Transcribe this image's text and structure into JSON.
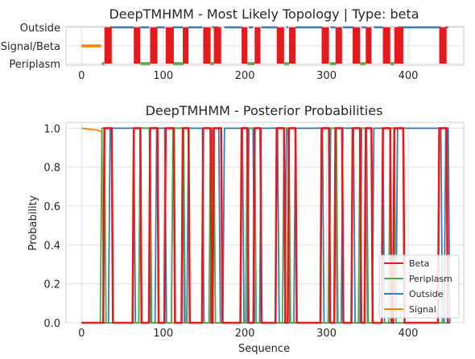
{
  "chart_data": [
    {
      "type": "line",
      "title": "DeepTMHMM - Most Likely Topology | Type: beta",
      "xlabel": "",
      "ylabel": "",
      "xlim": [
        -19,
        468
      ],
      "xticks": [
        0,
        100,
        200,
        300,
        400
      ],
      "yticks": [
        "Periplasm",
        "Signal/Beta",
        "Outside"
      ],
      "grid": true,
      "colors": {
        "Beta": "#e41a1c",
        "Periplasm": "#4daf4a",
        "Outside": "#377eb8",
        "Signal": "#ff7f00"
      },
      "signal": [
        [
          0,
          24
        ]
      ],
      "outside": [
        [
          35,
          64
        ],
        [
          72,
          83
        ],
        [
          92,
          102
        ],
        [
          112,
          124
        ],
        [
          131,
          148
        ],
        [
          160,
          168
        ],
        [
          175,
          197
        ],
        [
          205,
          210
        ],
        [
          220,
          240
        ],
        [
          251,
          253
        ],
        [
          262,
          295
        ],
        [
          305,
          311
        ],
        [
          320,
          333
        ],
        [
          343,
          349
        ],
        [
          358,
          369
        ],
        [
          387,
          440
        ],
        [
          446,
          449
        ]
      ],
      "periplasm": [
        [
          25,
          28
        ],
        [
          72,
          84
        ],
        [
          112,
          125
        ],
        [
          158,
          162
        ],
        [
          203,
          212
        ],
        [
          248,
          254
        ],
        [
          304,
          312
        ],
        [
          341,
          348
        ],
        [
          378,
          383
        ]
      ],
      "beta": [
        [
          28,
          37
        ],
        [
          64,
          72
        ],
        [
          84,
          93
        ],
        [
          103,
          113
        ],
        [
          124,
          131
        ],
        [
          149,
          158
        ],
        [
          162,
          171
        ],
        [
          196,
          203
        ],
        [
          212,
          219
        ],
        [
          239,
          248
        ],
        [
          254,
          262
        ],
        [
          294,
          303
        ],
        [
          311,
          319
        ],
        [
          332,
          341
        ],
        [
          348,
          355
        ],
        [
          369,
          378
        ],
        [
          383,
          394
        ],
        [
          438,
          447
        ]
      ]
    },
    {
      "type": "line",
      "title": "DeepTMHMM - Posterior Probabilities",
      "xlabel": "Sequence",
      "ylabel": "Probability",
      "xlim": [
        -19,
        468
      ],
      "ylim": [
        0,
        1.03
      ],
      "xticks": [
        0,
        100,
        200,
        300,
        400
      ],
      "yticks": [
        "0.0",
        "0.2",
        "0.4",
        "0.6",
        "0.8",
        "1.0"
      ],
      "grid": true,
      "legend": "lower-right",
      "series": [
        {
          "name": "Beta",
          "color": "#e41a1c"
        },
        {
          "name": "Periplasm",
          "color": "#4daf4a"
        },
        {
          "name": "Outside",
          "color": "#377eb8"
        },
        {
          "name": "Signal",
          "color": "#ff7f00"
        }
      ]
    }
  ]
}
